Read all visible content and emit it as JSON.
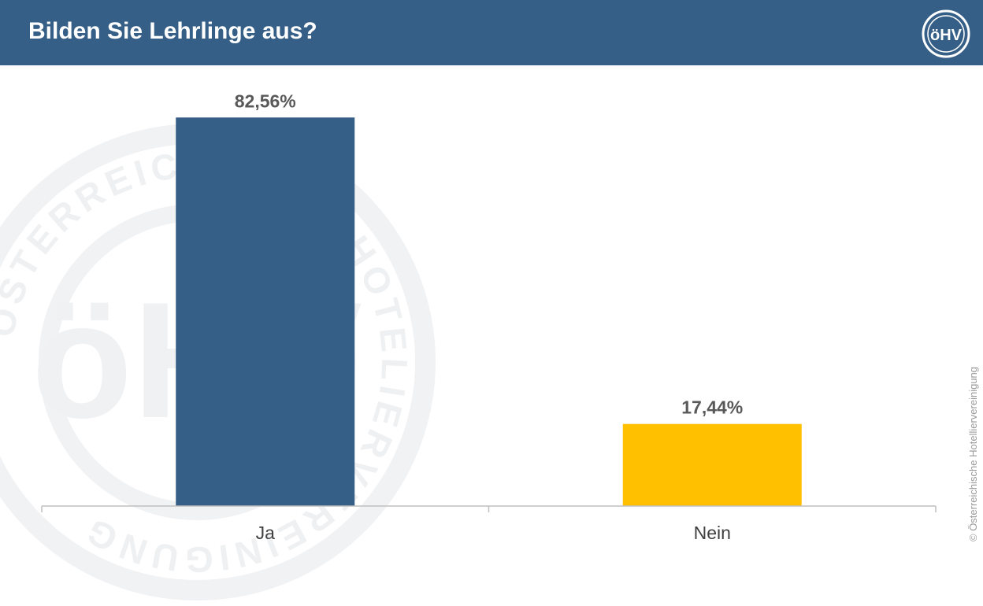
{
  "header": {
    "title": "Bilden Sie Lehrlinge aus?",
    "logo_text": "öHV",
    "background_color": "#365f87"
  },
  "watermark": {
    "ring_text": "ÖSTERREICHISCHE HOTELIERVEREINIGUNG",
    "logo_text": "öHV"
  },
  "copyright": "© Österreichische Hotelliervereinigung",
  "chart_data": {
    "type": "bar",
    "categories": [
      "Ja",
      "Nein"
    ],
    "values": [
      82.56,
      17.44
    ],
    "data_labels": [
      "82,56%",
      "17,44%"
    ],
    "colors": [
      "#365f87",
      "#ffc000"
    ],
    "ylim": [
      0,
      100
    ],
    "title": "",
    "xlabel": "",
    "ylabel": "",
    "grid": false,
    "legend": "none"
  }
}
